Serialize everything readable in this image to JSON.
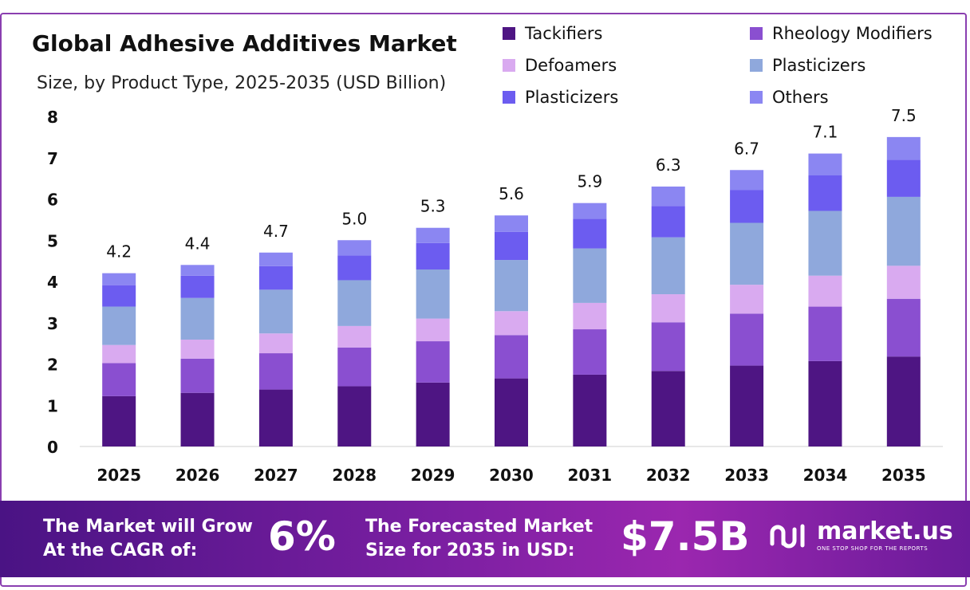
{
  "header": {
    "title": "Global Adhesive Additives Market",
    "subtitle": "Size, by Product Type, 2025-2035 (USD Billion)"
  },
  "legend": [
    {
      "label": "Tackifiers",
      "color": "#4e1583"
    },
    {
      "label": "Rheology Modifiers",
      "color": "#8a4fd0"
    },
    {
      "label": "Defoamers",
      "color": "#d9aaf0"
    },
    {
      "label": "Plasticizers",
      "color": "#8fa8dc"
    },
    {
      "label": "Plasticizers",
      "color": "#6c5cf0"
    },
    {
      "label": "Others",
      "color": "#8b86f2"
    }
  ],
  "chart_data": {
    "type": "bar",
    "stacked": true,
    "categories": [
      "2025",
      "2026",
      "2027",
      "2028",
      "2029",
      "2030",
      "2031",
      "2032",
      "2033",
      "2034",
      "2035"
    ],
    "series": [
      {
        "name": "Tackifiers",
        "values": [
          1.22,
          1.3,
          1.38,
          1.46,
          1.55,
          1.65,
          1.74,
          1.83,
          1.96,
          2.07,
          2.18
        ]
      },
      {
        "name": "Rheology Modifiers",
        "values": [
          0.8,
          0.83,
          0.88,
          0.94,
          1.0,
          1.05,
          1.1,
          1.18,
          1.26,
          1.32,
          1.4
        ]
      },
      {
        "name": "Defoamers",
        "values": [
          0.44,
          0.46,
          0.48,
          0.52,
          0.55,
          0.58,
          0.64,
          0.68,
          0.7,
          0.75,
          0.8
        ]
      },
      {
        "name": "Plasticizers",
        "values": [
          0.93,
          1.01,
          1.06,
          1.11,
          1.19,
          1.24,
          1.32,
          1.38,
          1.5,
          1.57,
          1.67
        ]
      },
      {
        "name": "Plasticizers",
        "values": [
          0.52,
          0.54,
          0.57,
          0.6,
          0.64,
          0.68,
          0.72,
          0.76,
          0.8,
          0.86,
          0.9
        ]
      },
      {
        "name": "Others",
        "values": [
          0.29,
          0.26,
          0.33,
          0.37,
          0.37,
          0.4,
          0.38,
          0.47,
          0.48,
          0.53,
          0.55
        ]
      }
    ],
    "totals": [
      "4.2",
      "4.4",
      "4.7",
      "5.0",
      "5.3",
      "5.6",
      "5.9",
      "6.3",
      "6.7",
      "7.1",
      "7.5"
    ],
    "ylim": [
      0,
      8
    ],
    "yticks": [
      "0",
      "1",
      "2",
      "3",
      "4",
      "5",
      "6",
      "7",
      "8"
    ],
    "grid": false,
    "legend_position": "top-right"
  },
  "footer": {
    "cagr_text_1": "The Market will Grow",
    "cagr_text_2": "At the CAGR of:",
    "cagr_value": "6%",
    "forecast_text_1": "The Forecasted Market",
    "forecast_text_2": "Size for 2035 in USD:",
    "forecast_value": "$7.5B",
    "brand_name": "market.us",
    "brand_tagline": "ONE STOP SHOP FOR THE REPORTS"
  }
}
